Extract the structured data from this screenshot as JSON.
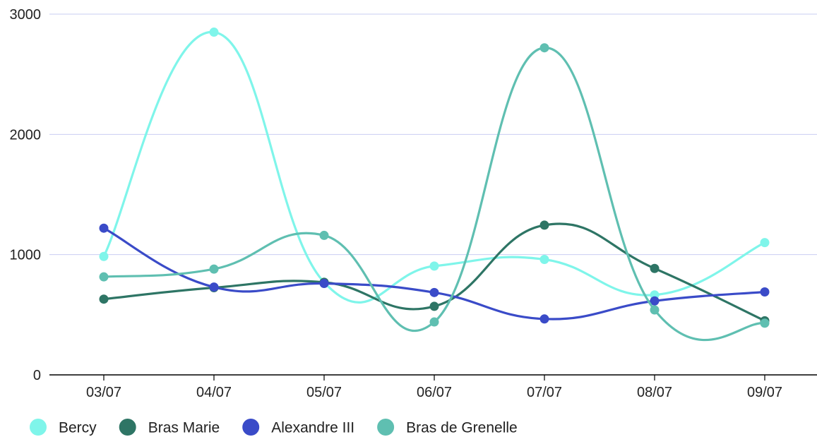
{
  "chart_data": {
    "type": "line",
    "title": "",
    "xlabel": "",
    "ylabel": "",
    "categories": [
      "03/07",
      "04/07",
      "05/07",
      "06/07",
      "07/07",
      "08/07",
      "09/07"
    ],
    "ylim": [
      0,
      3000
    ],
    "yticks": [
      0,
      1000,
      2000,
      3000
    ],
    "ytick_labels": [
      "0",
      "1000",
      "2000",
      "3000"
    ],
    "grid": true,
    "smooth": true,
    "legend_position": "bottom-left",
    "series": [
      {
        "name": "Bercy",
        "color": "#7ff5ea",
        "values": [
          985,
          2850,
          770,
          905,
          960,
          665,
          1100
        ]
      },
      {
        "name": "Bras Marie",
        "color": "#2e7565",
        "values": [
          630,
          725,
          770,
          570,
          1245,
          885,
          450
        ]
      },
      {
        "name": "Alexandre III",
        "color": "#3a4bc8",
        "values": [
          1220,
          730,
          760,
          685,
          465,
          615,
          690
        ]
      },
      {
        "name": "Bras de Grenelle",
        "color": "#5fbfb1",
        "values": [
          815,
          880,
          1160,
          440,
          2720,
          540,
          430
        ]
      }
    ]
  }
}
